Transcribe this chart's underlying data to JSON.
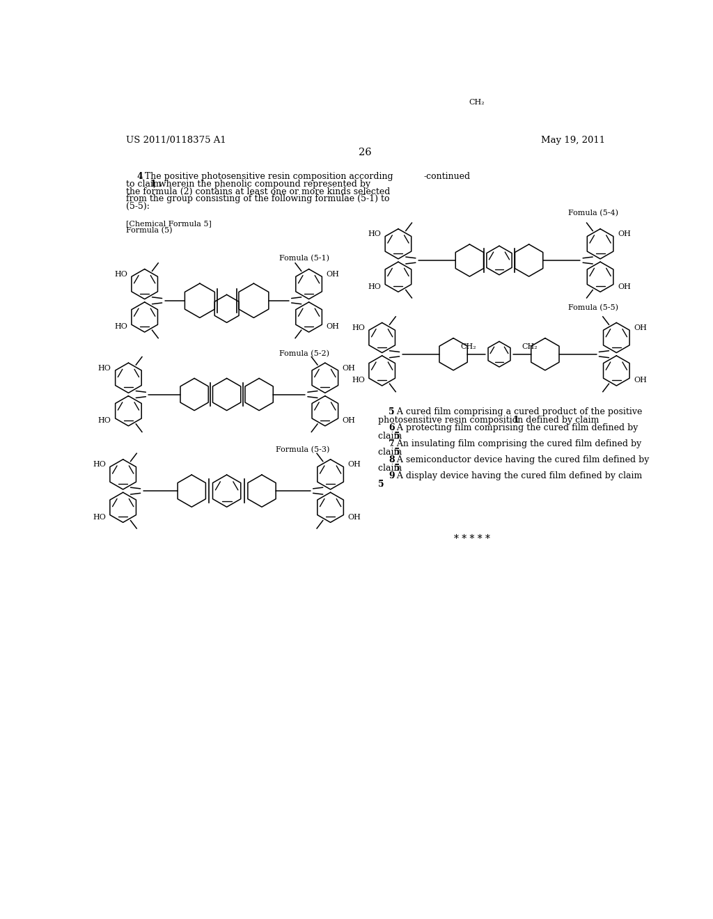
{
  "background_color": "#ffffff",
  "header_left": "US 2011/0118375 A1",
  "header_right": "May 19, 2011",
  "page_number": "26",
  "continued_label": "-continued",
  "chem_formula_label": "[Chemical Formula 5]",
  "formula_5_label": "Formula (5)",
  "formula_51_label": "Fomula (5-1)",
  "formula_52_label": "Fomula (5-2)",
  "formula_53_label": "Formula (5-3)",
  "formula_54_label": "Fomula (5-4)",
  "formula_55_label": "Fomula (5-5)"
}
